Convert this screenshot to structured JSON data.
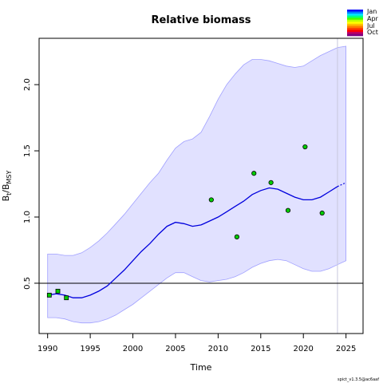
{
  "chart_data": {
    "type": "line",
    "title": "Relative biomass",
    "xlabel": "Time",
    "ylabel_main": "B",
    "ylabel_sub1": "t",
    "ylabel_sep": "/B",
    "ylabel_sub2": "MSY",
    "xlim": [
      1989,
      2027
    ],
    "ylim": [
      0.12,
      2.35
    ],
    "x_ticks": [
      1990,
      1995,
      2000,
      2005,
      2010,
      2015,
      2020,
      2025
    ],
    "y_ticks": [
      0.5,
      1.0,
      1.5,
      2.0
    ],
    "x_tick_labels": [
      "1990",
      "1995",
      "2000",
      "2005",
      "2010",
      "2015",
      "2020",
      "2025"
    ],
    "y_tick_labels": [
      "0.5",
      "1.0",
      "1.5",
      "2.0"
    ],
    "reference_line": 0.5,
    "vertical_line_x": 2024,
    "estimate": {
      "x": [
        1990,
        1991,
        1992,
        1993,
        1994,
        1995,
        1996,
        1997,
        1998,
        1999,
        2000,
        2001,
        2002,
        2003,
        2004,
        2005,
        2006,
        2007,
        2008,
        2009,
        2010,
        2011,
        2012,
        2013,
        2014,
        2015,
        2016,
        2017,
        2018,
        2019,
        2020,
        2021,
        2022,
        2023,
        2024
      ],
      "y": [
        0.41,
        0.42,
        0.41,
        0.39,
        0.39,
        0.41,
        0.44,
        0.48,
        0.54,
        0.6,
        0.67,
        0.74,
        0.8,
        0.87,
        0.93,
        0.96,
        0.95,
        0.93,
        0.94,
        0.97,
        1.0,
        1.04,
        1.08,
        1.12,
        1.17,
        1.2,
        1.22,
        1.21,
        1.18,
        1.15,
        1.13,
        1.13,
        1.15,
        1.19,
        1.23
      ]
    },
    "forecast": {
      "x": [
        2024,
        2025
      ],
      "y": [
        1.23,
        1.26
      ]
    },
    "ci_upper": [
      0.72,
      0.72,
      0.71,
      0.71,
      0.73,
      0.77,
      0.82,
      0.88,
      0.95,
      1.02,
      1.1,
      1.18,
      1.26,
      1.33,
      1.43,
      1.52,
      1.57,
      1.59,
      1.64,
      1.76,
      1.89,
      2.0,
      2.08,
      2.15,
      2.19,
      2.19,
      2.18,
      2.16,
      2.14,
      2.13,
      2.14,
      2.18,
      2.22,
      2.25,
      2.28,
      2.29
    ],
    "ci_lower": [
      0.24,
      0.24,
      0.23,
      0.21,
      0.2,
      0.2,
      0.21,
      0.23,
      0.26,
      0.3,
      0.34,
      0.39,
      0.44,
      0.49,
      0.54,
      0.58,
      0.58,
      0.55,
      0.52,
      0.51,
      0.52,
      0.53,
      0.55,
      0.58,
      0.62,
      0.65,
      0.67,
      0.68,
      0.67,
      0.64,
      0.61,
      0.59,
      0.59,
      0.61,
      0.64,
      0.67
    ],
    "ci_x": [
      1990,
      1991,
      1992,
      1993,
      1994,
      1995,
      1996,
      1997,
      1998,
      1999,
      2000,
      2001,
      2002,
      2003,
      2004,
      2005,
      2006,
      2007,
      2008,
      2009,
      2010,
      2011,
      2012,
      2013,
      2014,
      2015,
      2016,
      2017,
      2018,
      2019,
      2020,
      2021,
      2022,
      2023,
      2024,
      2025
    ],
    "observations": [
      {
        "x": 1990.2,
        "y": 0.41
      },
      {
        "x": 1991.2,
        "y": 0.44
      },
      {
        "x": 1992.2,
        "y": 0.39
      },
      {
        "x": 2009.2,
        "y": 1.13
      },
      {
        "x": 2012.2,
        "y": 0.85
      },
      {
        "x": 2014.2,
        "y": 1.33
      },
      {
        "x": 2016.2,
        "y": 1.26
      },
      {
        "x": 2018.2,
        "y": 1.05
      },
      {
        "x": 2020.2,
        "y": 1.53
      },
      {
        "x": 2022.2,
        "y": 1.03
      }
    ],
    "legend": {
      "labels": [
        "Jan",
        "Apr",
        "Jul",
        "Oct"
      ],
      "colors": [
        "#0000ff",
        "#0080ff",
        "#00e0ff",
        "#00ff80",
        "#40ff00",
        "#c0ff00",
        "#ffff00",
        "#ffc000",
        "#ff8000",
        "#ff4000",
        "#ff0000",
        "#c00060",
        "#800080"
      ]
    },
    "colors": {
      "ci_fill": "#e1e1ff",
      "ci_edge": "#a0a0ff",
      "estimate_line": "#0000dd",
      "point_fill": "#00cc00",
      "reference": "#000000",
      "vline": "#c8c8dc"
    }
  },
  "footer": "spict_v1.3.5@ac6aaf"
}
